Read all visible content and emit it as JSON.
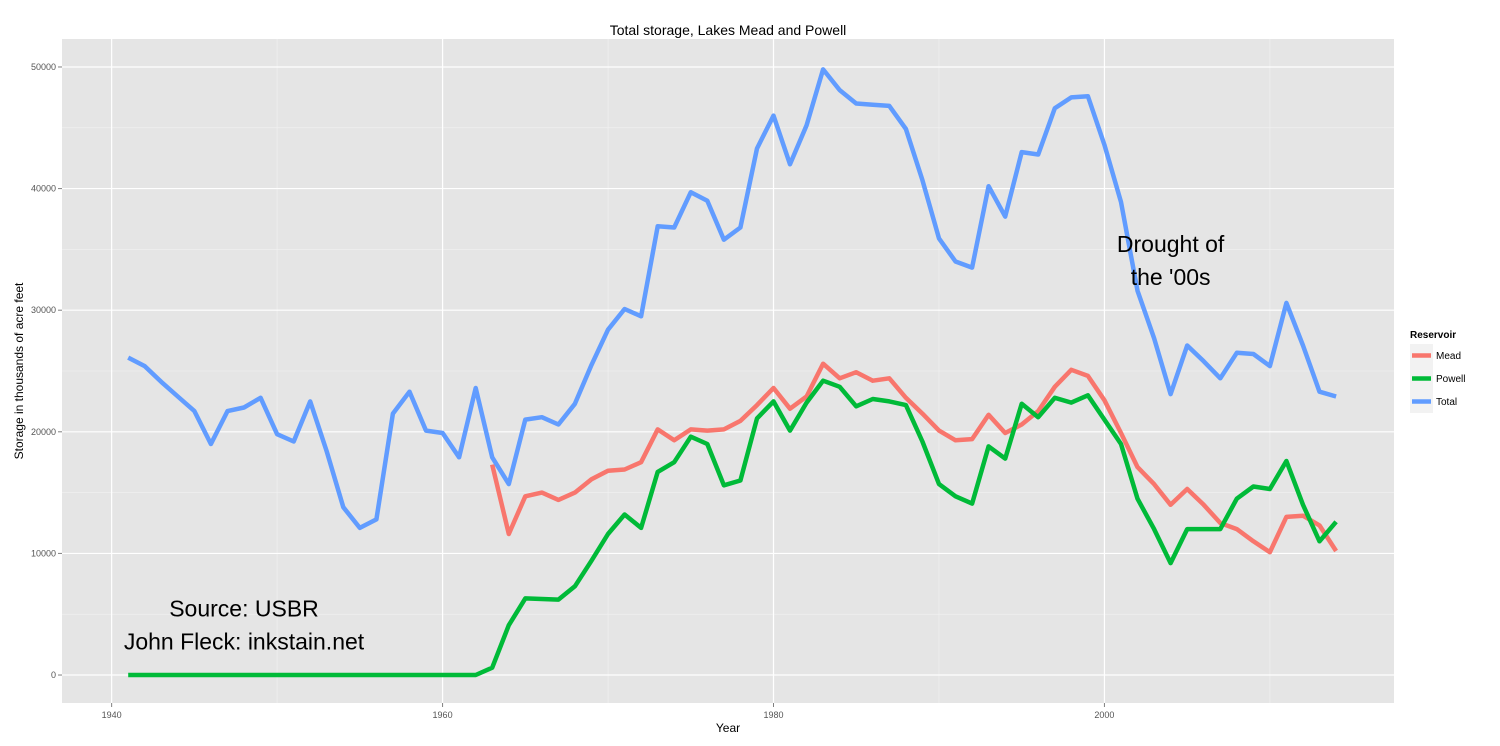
{
  "chart_data": {
    "type": "line",
    "title": "Total storage, Lakes Mead and Powell",
    "xlabel": "Year",
    "ylabel": "Storage in thousands of acre feet",
    "xlim": [
      1937,
      2017.5
    ],
    "ylim": [
      -2300,
      52300
    ],
    "x_ticks": [
      1940,
      1960,
      1980,
      2000
    ],
    "y_ticks": [
      0,
      10000,
      20000,
      30000,
      40000,
      50000
    ],
    "x_tick_labels": [
      "1940",
      "1960",
      "1980",
      "2000"
    ],
    "y_tick_labels": [
      "0",
      "10000",
      "20000",
      "30000",
      "40000",
      "50000"
    ],
    "grid": true,
    "background_color": "#e5e5e5",
    "legend": {
      "title": "Reservoir",
      "position": "right",
      "entries": [
        "Mead",
        "Powell",
        "Total"
      ]
    },
    "series": [
      {
        "name": "Mead",
        "color": "#f8766d",
        "x": [
          1963,
          1964,
          1965,
          1966,
          1967,
          1968,
          1969,
          1970,
          1971,
          1972,
          1973,
          1974,
          1975,
          1976,
          1977,
          1978,
          1979,
          1980,
          1981,
          1982,
          1983,
          1984,
          1985,
          1986,
          1987,
          1988,
          1989,
          1990,
          1991,
          1992,
          1993,
          1994,
          1995,
          1996,
          1997,
          1998,
          1999,
          2000,
          2001,
          2002,
          2003,
          2004,
          2005,
          2006,
          2007,
          2008,
          2009,
          2010,
          2011,
          2012,
          2013,
          2014
        ],
        "values": [
          17300,
          11600,
          14700,
          15000,
          14400,
          15000,
          16100,
          16800,
          16900,
          17500,
          20200,
          19300,
          20200,
          20100,
          20200,
          20900,
          22200,
          23600,
          21900,
          22900,
          25600,
          24400,
          24900,
          24200,
          24400,
          22800,
          21500,
          20100,
          19300,
          19400,
          21400,
          19900,
          20600,
          21700,
          23700,
          25100,
          24600,
          22600,
          19900,
          17100,
          15700,
          14000,
          15300,
          14000,
          12500,
          12000,
          11000,
          10100,
          13000,
          13100,
          12300,
          10200
        ]
      },
      {
        "name": "Powell",
        "color": "#00ba38",
        "x": [
          1941,
          1942,
          1943,
          1944,
          1945,
          1946,
          1947,
          1948,
          1949,
          1950,
          1951,
          1952,
          1953,
          1954,
          1955,
          1956,
          1957,
          1958,
          1959,
          1960,
          1961,
          1962,
          1963,
          1964,
          1965,
          1966,
          1967,
          1968,
          1969,
          1970,
          1971,
          1972,
          1973,
          1974,
          1975,
          1976,
          1977,
          1978,
          1979,
          1980,
          1981,
          1982,
          1983,
          1984,
          1985,
          1986,
          1987,
          1988,
          1989,
          1990,
          1991,
          1992,
          1993,
          1994,
          1995,
          1996,
          1997,
          1998,
          1999,
          2000,
          2001,
          2002,
          2003,
          2004,
          2005,
          2006,
          2007,
          2008,
          2009,
          2010,
          2011,
          2012,
          2013,
          2014
        ],
        "values": [
          0,
          0,
          0,
          0,
          0,
          0,
          0,
          0,
          0,
          0,
          0,
          0,
          0,
          0,
          0,
          0,
          0,
          0,
          0,
          0,
          0,
          0,
          600,
          4100,
          6300,
          6250,
          6200,
          7300,
          9400,
          11600,
          13200,
          12100,
          16700,
          17500,
          19600,
          19000,
          15600,
          16000,
          21100,
          22500,
          20100,
          22400,
          24200,
          23700,
          22100,
          22700,
          22500,
          22200,
          19200,
          15700,
          14700,
          14100,
          18800,
          17800,
          22300,
          21200,
          22800,
          22400,
          23000,
          21000,
          19000,
          14500,
          12000,
          9200,
          12000,
          12000,
          12000,
          14500,
          15500,
          15300,
          17600,
          14000,
          11000,
          12600
        ]
      },
      {
        "name": "Total",
        "color": "#619cff",
        "x": [
          1941,
          1942,
          1943,
          1944,
          1945,
          1946,
          1947,
          1948,
          1949,
          1950,
          1951,
          1952,
          1953,
          1954,
          1955,
          1956,
          1957,
          1958,
          1959,
          1960,
          1961,
          1962,
          1963,
          1964,
          1965,
          1966,
          1967,
          1968,
          1969,
          1970,
          1971,
          1972,
          1973,
          1974,
          1975,
          1976,
          1977,
          1978,
          1979,
          1980,
          1981,
          1982,
          1983,
          1984,
          1985,
          1986,
          1987,
          1988,
          1989,
          1990,
          1991,
          1992,
          1993,
          1994,
          1995,
          1996,
          1997,
          1998,
          1999,
          2000,
          2001,
          2002,
          2003,
          2004,
          2005,
          2006,
          2007,
          2008,
          2009,
          2010,
          2011,
          2012,
          2013,
          2014
        ],
        "values": [
          26100,
          25400,
          24100,
          22900,
          21700,
          19000,
          21700,
          22000,
          22800,
          19800,
          19200,
          22500,
          18400,
          13800,
          12100,
          12800,
          21500,
          23300,
          20100,
          19900,
          17900,
          23600,
          17900,
          15700,
          21000,
          21200,
          20600,
          22300,
          25500,
          28400,
          30100,
          29500,
          36900,
          36800,
          39700,
          39000,
          35800,
          36800,
          43300,
          46000,
          42000,
          45200,
          49800,
          48100,
          47000,
          46900,
          46800,
          44900,
          40700,
          35900,
          34000,
          33500,
          40200,
          37700,
          43000,
          42800,
          46600,
          47500,
          47600,
          43600,
          38900,
          31600,
          27700,
          23100,
          27100,
          25800,
          24400,
          26500,
          26400,
          25400,
          30600,
          27100,
          23300,
          22900
        ]
      }
    ],
    "annotations": [
      {
        "lines": [
          "Drought of",
          "the '00s"
        ],
        "x": 2004,
        "y": 34800
      },
      {
        "lines": [
          "Source: USBR",
          "John Fleck: inkstain.net"
        ],
        "x": 1948,
        "y": 4800
      }
    ]
  }
}
